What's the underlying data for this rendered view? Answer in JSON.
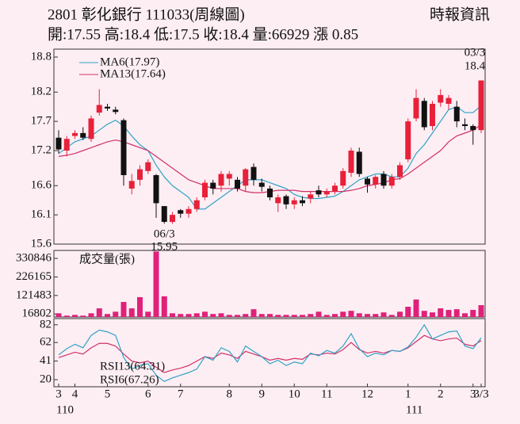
{
  "header": {
    "title": "2801  彰化銀行  111033(周線圖)",
    "quote": "開:17.55 高:18.4 低:17.5 收:18.4 量:66929 漲 0.85",
    "source": "時報資訊"
  },
  "chart_data": [
    {
      "type": "candlestick",
      "up_color": "#e8203a",
      "down_color": "#111111",
      "ylim": [
        15.6,
        18.8
      ],
      "yticks": [
        18.8,
        18.2,
        17.7,
        17.2,
        16.6,
        16.1,
        15.6
      ],
      "high_label": [
        "03/3",
        "18.4"
      ],
      "low_label": [
        "06/3",
        "15.95"
      ],
      "open": [
        17.42,
        17.2,
        17.45,
        17.5,
        17.4,
        17.85,
        17.95,
        17.9,
        17.72,
        16.55,
        16.7,
        16.85,
        16.78,
        16.25,
        15.98,
        16.18,
        16.12,
        16.2,
        16.4,
        16.65,
        16.6,
        16.72,
        16.7,
        16.6,
        16.92,
        16.65,
        16.55,
        16.3,
        16.42,
        16.28,
        16.35,
        16.38,
        16.52,
        16.45,
        16.5,
        16.6,
        16.82,
        17.18,
        16.72,
        16.62,
        16.8,
        16.6,
        16.75,
        17.05,
        17.75,
        18.05,
        17.62,
        18.02,
        18.0,
        17.95,
        17.65,
        17.62,
        17.55
      ],
      "high": [
        17.55,
        17.45,
        17.55,
        17.6,
        17.8,
        18.25,
        18.0,
        17.95,
        17.75,
        16.8,
        16.95,
        17.05,
        16.8,
        16.25,
        16.15,
        16.2,
        16.25,
        16.4,
        16.7,
        16.7,
        16.85,
        16.85,
        16.75,
        16.9,
        16.98,
        16.72,
        16.6,
        16.45,
        16.45,
        16.4,
        16.42,
        16.5,
        16.6,
        16.55,
        16.65,
        16.9,
        17.25,
        17.25,
        16.75,
        16.78,
        16.85,
        16.8,
        17.0,
        17.75,
        18.25,
        18.1,
        18.05,
        18.25,
        18.15,
        18.05,
        17.75,
        17.65,
        18.4
      ],
      "low": [
        17.15,
        17.1,
        17.4,
        17.38,
        17.35,
        17.8,
        17.88,
        17.82,
        16.6,
        16.45,
        16.6,
        16.8,
        16.05,
        15.95,
        15.95,
        16.05,
        16.05,
        16.15,
        16.35,
        16.45,
        16.5,
        16.6,
        16.5,
        16.5,
        16.6,
        16.5,
        16.35,
        16.15,
        16.2,
        16.2,
        16.25,
        16.3,
        16.4,
        16.4,
        16.45,
        16.55,
        16.75,
        16.75,
        16.48,
        16.55,
        16.55,
        16.55,
        16.7,
        17.0,
        17.7,
        17.55,
        17.55,
        17.95,
        17.9,
        17.6,
        17.55,
        17.3,
        17.5
      ],
      "close": [
        17.22,
        17.4,
        17.5,
        17.42,
        17.75,
        17.98,
        17.92,
        17.86,
        16.78,
        16.68,
        16.88,
        17.0,
        16.3,
        15.98,
        16.1,
        16.12,
        16.2,
        16.35,
        16.65,
        16.55,
        16.8,
        16.8,
        16.55,
        16.88,
        16.7,
        16.58,
        16.4,
        16.4,
        16.28,
        16.35,
        16.3,
        16.45,
        16.45,
        16.5,
        16.6,
        16.85,
        17.2,
        16.8,
        16.62,
        16.75,
        16.6,
        16.75,
        16.95,
        17.7,
        18.1,
        17.6,
        18.0,
        18.15,
        18.1,
        17.7,
        17.62,
        17.55,
        18.4
      ],
      "series": [
        {
          "name": "MA6(17.97)",
          "color": "#2fa3c6",
          "values": [
            17.15,
            17.25,
            17.35,
            17.4,
            17.45,
            17.55,
            17.65,
            17.72,
            17.62,
            17.45,
            17.3,
            17.2,
            16.95,
            16.75,
            16.6,
            16.5,
            16.4,
            16.2,
            16.2,
            16.3,
            16.4,
            16.5,
            16.6,
            16.7,
            16.7,
            16.7,
            16.65,
            16.6,
            16.55,
            16.45,
            16.4,
            16.38,
            16.38,
            16.4,
            16.42,
            16.5,
            16.6,
            16.7,
            16.75,
            16.8,
            16.8,
            16.75,
            16.75,
            16.9,
            17.15,
            17.3,
            17.5,
            17.7,
            17.9,
            17.95,
            17.85,
            17.85,
            17.97
          ]
        },
        {
          "name": "MA13(17.64)",
          "color": "#d0306a",
          "values": [
            17.1,
            17.12,
            17.15,
            17.2,
            17.25,
            17.3,
            17.35,
            17.38,
            17.35,
            17.3,
            17.25,
            17.2,
            17.1,
            17.0,
            16.9,
            16.8,
            16.7,
            16.65,
            16.6,
            16.55,
            16.55,
            16.55,
            16.55,
            16.5,
            16.48,
            16.48,
            16.5,
            16.52,
            16.52,
            16.52,
            16.5,
            16.5,
            16.5,
            16.5,
            16.5,
            16.5,
            16.52,
            16.55,
            16.6,
            16.62,
            16.65,
            16.7,
            16.72,
            16.8,
            16.9,
            17.0,
            17.1,
            17.2,
            17.35,
            17.45,
            17.5,
            17.55,
            17.64
          ]
        }
      ]
    },
    {
      "type": "bar",
      "label": "成交量(張)",
      "color": "#e0207a",
      "ylim": [
        0,
        376000
      ],
      "yticks": [
        330846,
        226165,
        121483,
        16802
      ],
      "values": [
        21000,
        8000,
        12000,
        8000,
        21000,
        49000,
        17000,
        30000,
        85000,
        49000,
        112000,
        30000,
        370000,
        117000,
        21000,
        17000,
        17000,
        21000,
        30000,
        17000,
        21000,
        12000,
        12000,
        17000,
        44000,
        17000,
        17000,
        12000,
        12000,
        12000,
        12000,
        17000,
        30000,
        12000,
        17000,
        30000,
        35000,
        21000,
        17000,
        17000,
        26000,
        12000,
        30000,
        58000,
        99000,
        35000,
        26000,
        49000,
        40000,
        44000,
        21000,
        40000,
        66929
      ]
    },
    {
      "type": "line",
      "ylim": [
        12,
        89
      ],
      "yticks": [
        82,
        62,
        41,
        20
      ],
      "categories": [
        "3",
        null,
        "4",
        null,
        null,
        null,
        "5",
        null,
        null,
        null,
        null,
        "6",
        null,
        null,
        null,
        "7",
        null,
        null,
        null,
        null,
        null,
        "8",
        null,
        null,
        null,
        "9",
        null,
        null,
        null,
        "10",
        null,
        null,
        null,
        "11",
        null,
        null,
        null,
        null,
        "12",
        null,
        null,
        null,
        null,
        "1",
        null,
        null,
        null,
        "2",
        null,
        null,
        null,
        "3",
        "3/3"
      ],
      "year_labels": [
        "110",
        "111"
      ],
      "series": [
        {
          "name": "RSI13(64.31)",
          "color": "#d0306a",
          "values": [
            45,
            48,
            51,
            49,
            56,
            61,
            61,
            58,
            49,
            41,
            39,
            41,
            34,
            28,
            31,
            33,
            36,
            41,
            46,
            44,
            50,
            48,
            44,
            52,
            49,
            46,
            42,
            44,
            42,
            44,
            43,
            49,
            48,
            50,
            49,
            54,
            62,
            54,
            50,
            52,
            50,
            53,
            52,
            56,
            63,
            70,
            66,
            64,
            66,
            67,
            60,
            58,
            64.31
          ]
        },
        {
          "name": "RSI6(67.26)",
          "color": "#2fa3c6",
          "values": [
            48,
            55,
            60,
            56,
            70,
            76,
            74,
            70,
            45,
            32,
            36,
            38,
            25,
            18,
            22,
            25,
            28,
            32,
            46,
            42,
            56,
            52,
            40,
            58,
            52,
            46,
            38,
            42,
            36,
            40,
            38,
            50,
            47,
            53,
            50,
            58,
            72,
            55,
            46,
            50,
            48,
            53,
            52,
            57,
            68,
            82,
            66,
            70,
            74,
            75,
            58,
            55,
            67.26
          ]
        }
      ]
    }
  ]
}
